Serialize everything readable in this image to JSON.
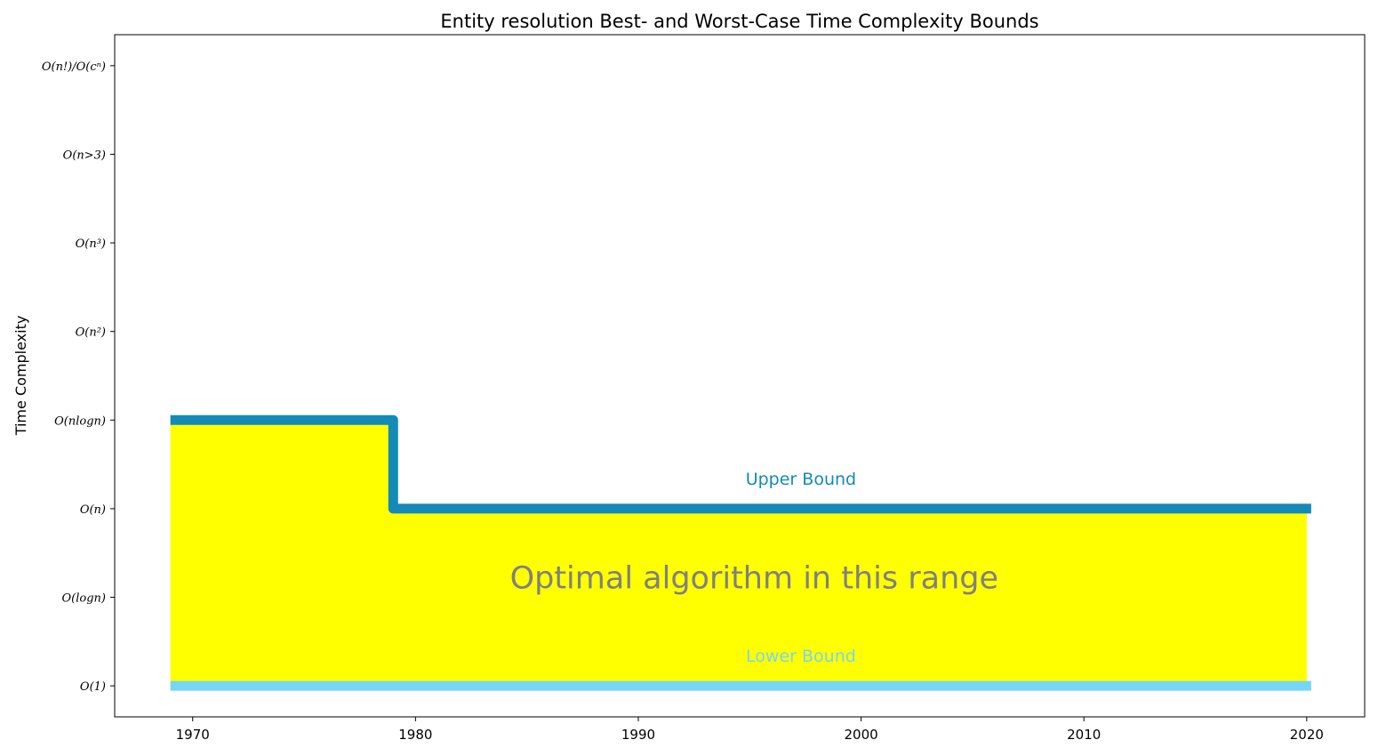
{
  "chart_data": {
    "type": "line",
    "title": "Entity resolution Best- and Worst-Case Time Complexity Bounds",
    "xlabel": "",
    "ylabel": "Time Complexity",
    "xlim": [
      1966.5,
      2022.6
    ],
    "ylim": [
      -0.35,
      7.35
    ],
    "x_ticks": [
      1970,
      1980,
      1990,
      2000,
      2010,
      2020
    ],
    "y_ticks": [
      {
        "value": 0,
        "label": "O(1)"
      },
      {
        "value": 1,
        "label": "O(logn)"
      },
      {
        "value": 2,
        "label": "O(n)"
      },
      {
        "value": 3,
        "label": "O(nlogn)"
      },
      {
        "value": 4,
        "label": "O(n²)"
      },
      {
        "value": 5,
        "label": "O(n³)"
      },
      {
        "value": 6,
        "label": "O(n>3)"
      },
      {
        "value": 7,
        "label": "O(n!)/O(cⁿ)"
      }
    ],
    "grid": false,
    "series": [
      {
        "name": "Upper Bound",
        "color": "#138ab8",
        "step": "post",
        "points": [
          [
            1969,
            3
          ],
          [
            1979,
            3
          ],
          [
            1979,
            2
          ],
          [
            2020.2,
            2
          ]
        ]
      },
      {
        "name": "Lower Bound",
        "color": "#76d6f5",
        "step": "post",
        "points": [
          [
            1969,
            0
          ],
          [
            2020.2,
            0
          ]
        ]
      }
    ],
    "fill_between": {
      "color": "#ffff00",
      "x_start": 1969,
      "x_end": 2020,
      "label": "Optimal algorithm in this range"
    },
    "annotations": [
      {
        "text": "Upper Bound",
        "x": 1997.3,
        "y": 2.27,
        "color": "#138ab8"
      },
      {
        "text": "Lower Bound",
        "x": 1997.3,
        "y": 0.27,
        "color": "#76d6f5"
      },
      {
        "text": "Optimal algorithm in this range",
        "x": 1995.2,
        "y": 1.1,
        "color": "#808080"
      }
    ]
  }
}
